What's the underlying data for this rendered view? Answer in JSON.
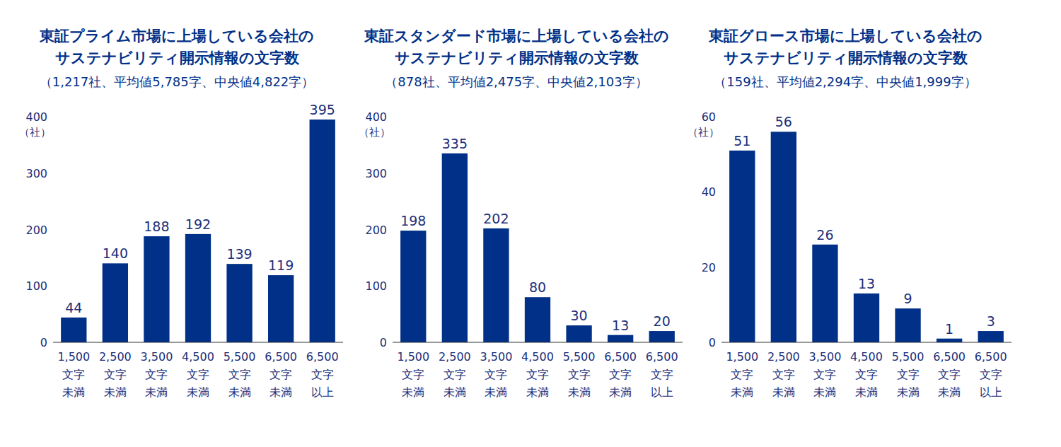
{
  "chart_data": [
    {
      "type": "bar",
      "title": "東証プライム市場に上場している会社の\nサステナビリティ開示情報の文字数",
      "subtitle": "（1,217社、平均値5,785字、中央値4,822字）",
      "y_label": "（社）",
      "categories": [
        "1,500\n文字\n未満",
        "2,500\n文字\n未満",
        "3,500\n文字\n未満",
        "4,500\n文字\n未満",
        "5,500\n文字\n未満",
        "6,500\n文字\n未満",
        "6,500\n文字\n以上"
      ],
      "values": [
        44,
        140,
        188,
        192,
        139,
        119,
        395
      ],
      "color": "#003087",
      "ylim": [
        0,
        400
      ],
      "yticks": [
        0,
        100,
        200,
        300,
        400
      ],
      "grid": false,
      "data_labels": true
    },
    {
      "type": "bar",
      "title": "東証スタンダード市場に上場している会社の\nサステナビリティ開示情報の文字数",
      "subtitle": "（878社、平均値2,475字、中央値2,103字）",
      "y_label": "（社）",
      "categories": [
        "1,500\n文字\n未満",
        "2,500\n文字\n未満",
        "3,500\n文字\n未満",
        "4,500\n文字\n未満",
        "5,500\n文字\n未満",
        "6,500\n文字\n未満",
        "6,500\n文字\n以上"
      ],
      "values": [
        198,
        335,
        202,
        80,
        30,
        13,
        20
      ],
      "color": "#003087",
      "ylim": [
        0,
        400
      ],
      "yticks": [
        0,
        100,
        200,
        300,
        400
      ],
      "grid": false,
      "data_labels": true
    },
    {
      "type": "bar",
      "title": "東証グロース市場に上場している会社の\nサステナビリティ開示情報の文字数",
      "subtitle": "（159社、平均値2,294字、中央値1,999字）",
      "y_label": "（社）",
      "categories": [
        "1,500\n文字\n未満",
        "2,500\n文字\n未満",
        "3,500\n文字\n未満",
        "4,500\n文字\n未満",
        "5,500\n文字\n未満",
        "6,500\n文字\n未満",
        "6,500\n文字\n以上"
      ],
      "values": [
        51,
        56,
        26,
        13,
        9,
        1,
        3
      ],
      "color": "#003087",
      "ylim": [
        0,
        60
      ],
      "yticks": [
        0,
        20,
        40,
        60
      ],
      "grid": false,
      "data_labels": true
    }
  ]
}
